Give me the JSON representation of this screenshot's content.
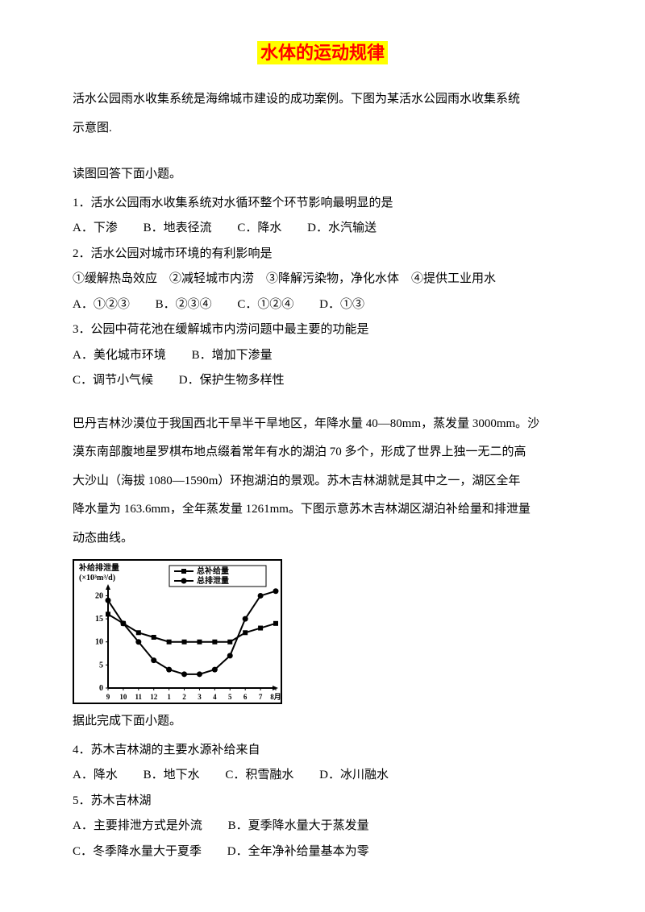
{
  "title": "水体的运动规律",
  "intro1_line1": "活水公园雨水收集系统是海绵城市建设的成功案例。下图为某活水公园雨水收集系统",
  "intro1_line2": "示意图.",
  "instruction1": "读图回答下面小题。",
  "q1": {
    "stem": "1．活水公园雨水收集系统对水循环整个环节影响最明显的是",
    "A": "A．下渗",
    "B": "B．地表径流",
    "C": "C．降水",
    "D": "D．水汽输送"
  },
  "q2": {
    "stem": "2．活水公园对城市环境的有利影响是",
    "circled": "①缓解热岛效应　②减轻城市内涝　③降解污染物，净化水体　④提供工业用水",
    "A": "A．①②③",
    "B": "B．②③④",
    "C": "C．①②④",
    "D": "D．①③"
  },
  "q3": {
    "stem": "3．公园中荷花池在缓解城市内涝问题中最主要的功能是",
    "A": "A．美化城市环境",
    "B": "B．增加下渗量",
    "C": "C．调节小气候",
    "D": "D．保护生物多样性"
  },
  "intro2_line1": "巴丹吉林沙漠位于我国西北干旱半干旱地区，年降水量 40—80mm，蒸发量 3000mm。沙",
  "intro2_line2": "漠东南部腹地星罗棋布地点缀着常年有水的湖泊 70 多个，形成了世界上独一无二的高",
  "intro2_line3": "大沙山（海拔 1080—1590m）环抱湖泊的景观。苏木吉林湖就是其中之一，湖区全年",
  "intro2_line4": "降水量为 163.6mm，全年蒸发量 1261mm。下图示意苏木吉林湖区湖泊补给量和排泄量",
  "intro2_line5": "动态曲线。",
  "chart": {
    "y_label_line1": "补给排泄量",
    "y_label_line2": "(×10³m³/d)",
    "legend1": "总补给量",
    "legend2": "总排泄量",
    "y_ticks": [
      "0",
      "5",
      "10",
      "15",
      "20"
    ],
    "x_ticks": [
      "9",
      "10",
      "11",
      "12",
      "1",
      "2",
      "3",
      "4",
      "5",
      "6",
      "7",
      "8月"
    ],
    "series1_values": [
      16,
      14,
      12,
      11,
      10,
      10,
      10,
      10,
      10,
      12,
      13,
      14
    ],
    "series2_values": [
      19,
      14,
      10,
      6,
      4,
      3,
      3,
      4,
      7,
      15,
      20,
      21
    ],
    "y_max": 22,
    "colors": {
      "axis": "#000000",
      "series": "#000000",
      "background": "#ffffff"
    }
  },
  "instruction2": "据此完成下面小题。",
  "q4": {
    "stem": "4．苏木吉林湖的主要水源补给来自",
    "A": "A．降水",
    "B": "B．地下水",
    "C": "C．积雪融水",
    "D": "D．冰川融水"
  },
  "q5": {
    "stem": "5．苏木吉林湖",
    "A": "A．主要排泄方式是外流",
    "B": "B．夏季降水量大于蒸发量",
    "C": "C．冬季降水量大于夏季",
    "D": "D．全年净补给量基本为零"
  }
}
